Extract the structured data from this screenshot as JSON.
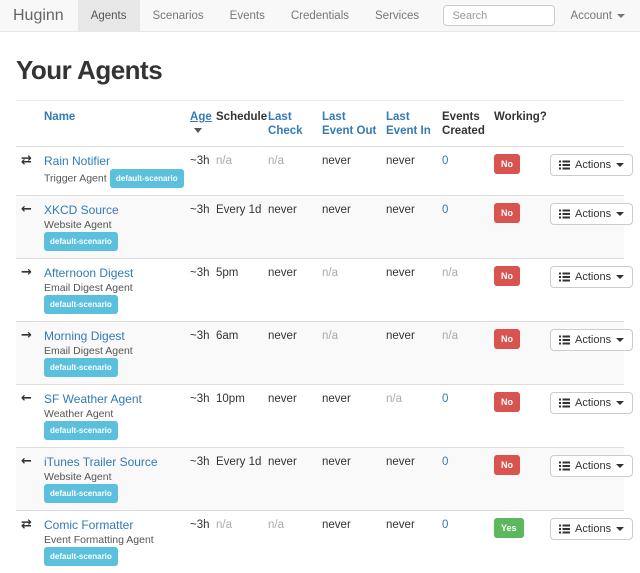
{
  "navbar": {
    "brand": "Huginn",
    "items": [
      {
        "label": "Agents",
        "active": true
      },
      {
        "label": "Scenarios",
        "active": false
      },
      {
        "label": "Events",
        "active": false
      },
      {
        "label": "Credentials",
        "active": false
      },
      {
        "label": "Services",
        "active": false
      }
    ],
    "search": {
      "placeholder": "Search"
    },
    "account": {
      "label": "Account"
    }
  },
  "page": {
    "title": "Your Agents"
  },
  "agents_table": {
    "headers": [
      {
        "label": "Name",
        "kind": "link",
        "sorted": false
      },
      {
        "label": "Age",
        "kind": "link",
        "sorted": true
      },
      {
        "label": "Schedule",
        "kind": "plain",
        "sorted": false
      },
      {
        "label": "Last Check",
        "kind": "link",
        "sorted": false
      },
      {
        "label": "Last Event Out",
        "kind": "link",
        "sorted": false
      },
      {
        "label": "Last Event In",
        "kind": "link",
        "sorted": false
      },
      {
        "label": "Events Created",
        "kind": "plain",
        "sorted": false
      },
      {
        "label": "Working?",
        "kind": "plain",
        "sorted": false
      }
    ],
    "actions_button_label": "Actions",
    "rows": [
      {
        "icon": "exchange-icon",
        "name": "Rain Notifier",
        "agent_type": "Trigger Agent",
        "scenario_badge": "default-scenario",
        "age": {
          "text": "~3h",
          "kind": "plain"
        },
        "schedule": {
          "text": "n/a",
          "kind": "muted"
        },
        "last_check": {
          "text": "n/a",
          "kind": "muted"
        },
        "last_event_out": {
          "text": "never",
          "kind": "plain"
        },
        "last_event_in": {
          "text": "never",
          "kind": "plain"
        },
        "events_created": {
          "text": "0",
          "kind": "link"
        },
        "working": {
          "text": "No",
          "state": "no"
        }
      },
      {
        "icon": "arrow-left-icon",
        "name": "XKCD Source",
        "agent_type": "Website Agent",
        "scenario_badge": "default-scenario",
        "age": {
          "text": "~3h",
          "kind": "plain"
        },
        "schedule": {
          "text": "Every 1d",
          "kind": "plain"
        },
        "last_check": {
          "text": "never",
          "kind": "plain"
        },
        "last_event_out": {
          "text": "never",
          "kind": "plain"
        },
        "last_event_in": {
          "text": "never",
          "kind": "plain"
        },
        "events_created": {
          "text": "0",
          "kind": "link"
        },
        "working": {
          "text": "No",
          "state": "no"
        }
      },
      {
        "icon": "arrow-right-icon",
        "name": "Afternoon Digest",
        "agent_type": "Email Digest Agent",
        "scenario_badge": "default-scenario",
        "age": {
          "text": "~3h",
          "kind": "plain"
        },
        "schedule": {
          "text": "5pm",
          "kind": "plain"
        },
        "last_check": {
          "text": "never",
          "kind": "plain"
        },
        "last_event_out": {
          "text": "n/a",
          "kind": "muted"
        },
        "last_event_in": {
          "text": "never",
          "kind": "plain"
        },
        "events_created": {
          "text": "n/a",
          "kind": "muted"
        },
        "working": {
          "text": "No",
          "state": "no"
        }
      },
      {
        "icon": "arrow-right-icon",
        "name": "Morning Digest",
        "agent_type": "Email Digest Agent",
        "scenario_badge": "default-scenario",
        "age": {
          "text": "~3h",
          "kind": "plain"
        },
        "schedule": {
          "text": "6am",
          "kind": "plain"
        },
        "last_check": {
          "text": "never",
          "kind": "plain"
        },
        "last_event_out": {
          "text": "n/a",
          "kind": "muted"
        },
        "last_event_in": {
          "text": "never",
          "kind": "plain"
        },
        "events_created": {
          "text": "n/a",
          "kind": "muted"
        },
        "working": {
          "text": "No",
          "state": "no"
        }
      },
      {
        "icon": "arrow-left-icon",
        "name": "SF Weather Agent",
        "agent_type": "Weather Agent",
        "scenario_badge": "default-scenario",
        "age": {
          "text": "~3h",
          "kind": "plain"
        },
        "schedule": {
          "text": "10pm",
          "kind": "plain"
        },
        "last_check": {
          "text": "never",
          "kind": "plain"
        },
        "last_event_out": {
          "text": "never",
          "kind": "plain"
        },
        "last_event_in": {
          "text": "n/a",
          "kind": "muted"
        },
        "events_created": {
          "text": "0",
          "kind": "link"
        },
        "working": {
          "text": "No",
          "state": "no"
        }
      },
      {
        "icon": "arrow-left-icon",
        "name": "iTunes Trailer Source",
        "agent_type": "Website Agent",
        "scenario_badge": "default-scenario",
        "age": {
          "text": "~3h",
          "kind": "plain"
        },
        "schedule": {
          "text": "Every 1d",
          "kind": "plain"
        },
        "last_check": {
          "text": "never",
          "kind": "plain"
        },
        "last_event_out": {
          "text": "never",
          "kind": "plain"
        },
        "last_event_in": {
          "text": "never",
          "kind": "plain"
        },
        "events_created": {
          "text": "0",
          "kind": "link"
        },
        "working": {
          "text": "No",
          "state": "no"
        }
      },
      {
        "icon": "exchange-icon",
        "name": "Comic Formatter",
        "agent_type": "Event Formatting Agent",
        "scenario_badge": "default-scenario",
        "age": {
          "text": "~3h",
          "kind": "plain"
        },
        "schedule": {
          "text": "n/a",
          "kind": "muted"
        },
        "last_check": {
          "text": "n/a",
          "kind": "muted"
        },
        "last_event_out": {
          "text": "never",
          "kind": "plain"
        },
        "last_event_in": {
          "text": "never",
          "kind": "plain"
        },
        "events_created": {
          "text": "0",
          "kind": "link"
        },
        "working": {
          "text": "Yes",
          "state": "yes"
        }
      }
    ]
  },
  "colors": {
    "link": "#337ab7",
    "scenario_badge": "#5bc0de",
    "working_no": "#d9534f",
    "working_yes": "#5cb85c",
    "navbar_bg": "#f8f8f8",
    "row_stripe": "#f9f9f9"
  }
}
